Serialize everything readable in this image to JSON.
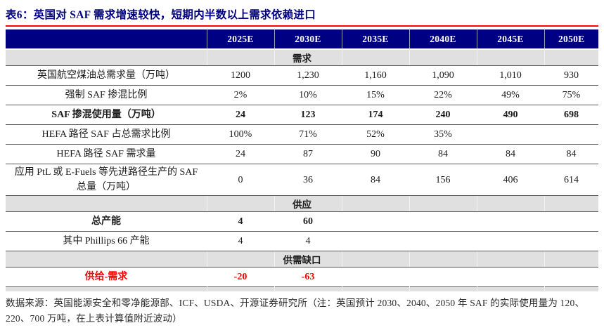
{
  "title": "表6：英国对 SAF 需求增速较快，短期内半数以上需求依赖进口",
  "colors": {
    "header_bg": "#000083",
    "title_navy": "#000080",
    "accent_red": "#FE0000",
    "section_band_bg": "#E0E0E0"
  },
  "table": {
    "columns": [
      "",
      "2025E",
      "2030E",
      "2035E",
      "2040E",
      "2045E",
      "2050E"
    ],
    "sections": [
      {
        "label": "需求",
        "rows": [
          {
            "label": "英国航空煤油总需求量（万吨）",
            "values": [
              "1200",
              "1,230",
              "1,160",
              "1,090",
              "1,010",
              "930"
            ],
            "bold": false,
            "red": false
          },
          {
            "label": "强制 SAF 掺混比例",
            "values": [
              "2%",
              "10%",
              "15%",
              "22%",
              "49%",
              "75%"
            ],
            "bold": false,
            "red": false
          },
          {
            "label": "SAF 掺混使用量（万吨）",
            "values": [
              "24",
              "123",
              "174",
              "240",
              "490",
              "698"
            ],
            "bold": true,
            "red": false
          },
          {
            "label": "HEFA 路径 SAF 占总需求比例",
            "values": [
              "100%",
              "71%",
              "52%",
              "35%",
              "",
              ""
            ],
            "bold": false,
            "red": false
          },
          {
            "label": "HEFA 路径 SAF 需求量",
            "values": [
              "24",
              "87",
              "90",
              "84",
              "84",
              "84"
            ],
            "bold": false,
            "red": false
          },
          {
            "label": "应用 PtL 或 E-Fuels 等先进路径生产的 SAF 总量（万吨）",
            "values": [
              "0",
              "36",
              "84",
              "156",
              "406",
              "614"
            ],
            "bold": false,
            "red": false
          }
        ]
      },
      {
        "label": "供应",
        "rows": [
          {
            "label": "总产能",
            "values": [
              "4",
              "60",
              "",
              "",
              "",
              ""
            ],
            "bold": true,
            "red": false
          },
          {
            "label": "其中 Phillips 66 产能",
            "values": [
              "4",
              "4",
              "",
              "",
              "",
              ""
            ],
            "bold": false,
            "red": false
          }
        ]
      },
      {
        "label": "供需缺口",
        "rows": [
          {
            "label": "供给-需求",
            "values": [
              "-20",
              "-63",
              "",
              "",
              "",
              ""
            ],
            "bold": true,
            "red": true
          }
        ]
      }
    ]
  },
  "footer": "数据来源：英国能源安全和零净能源部、ICF、USDA、开源证券研究所（注：英国预计 2030、2040、2050 年 SAF 的实际使用量为 120、220、700 万吨，在上表计算值附近波动）"
}
